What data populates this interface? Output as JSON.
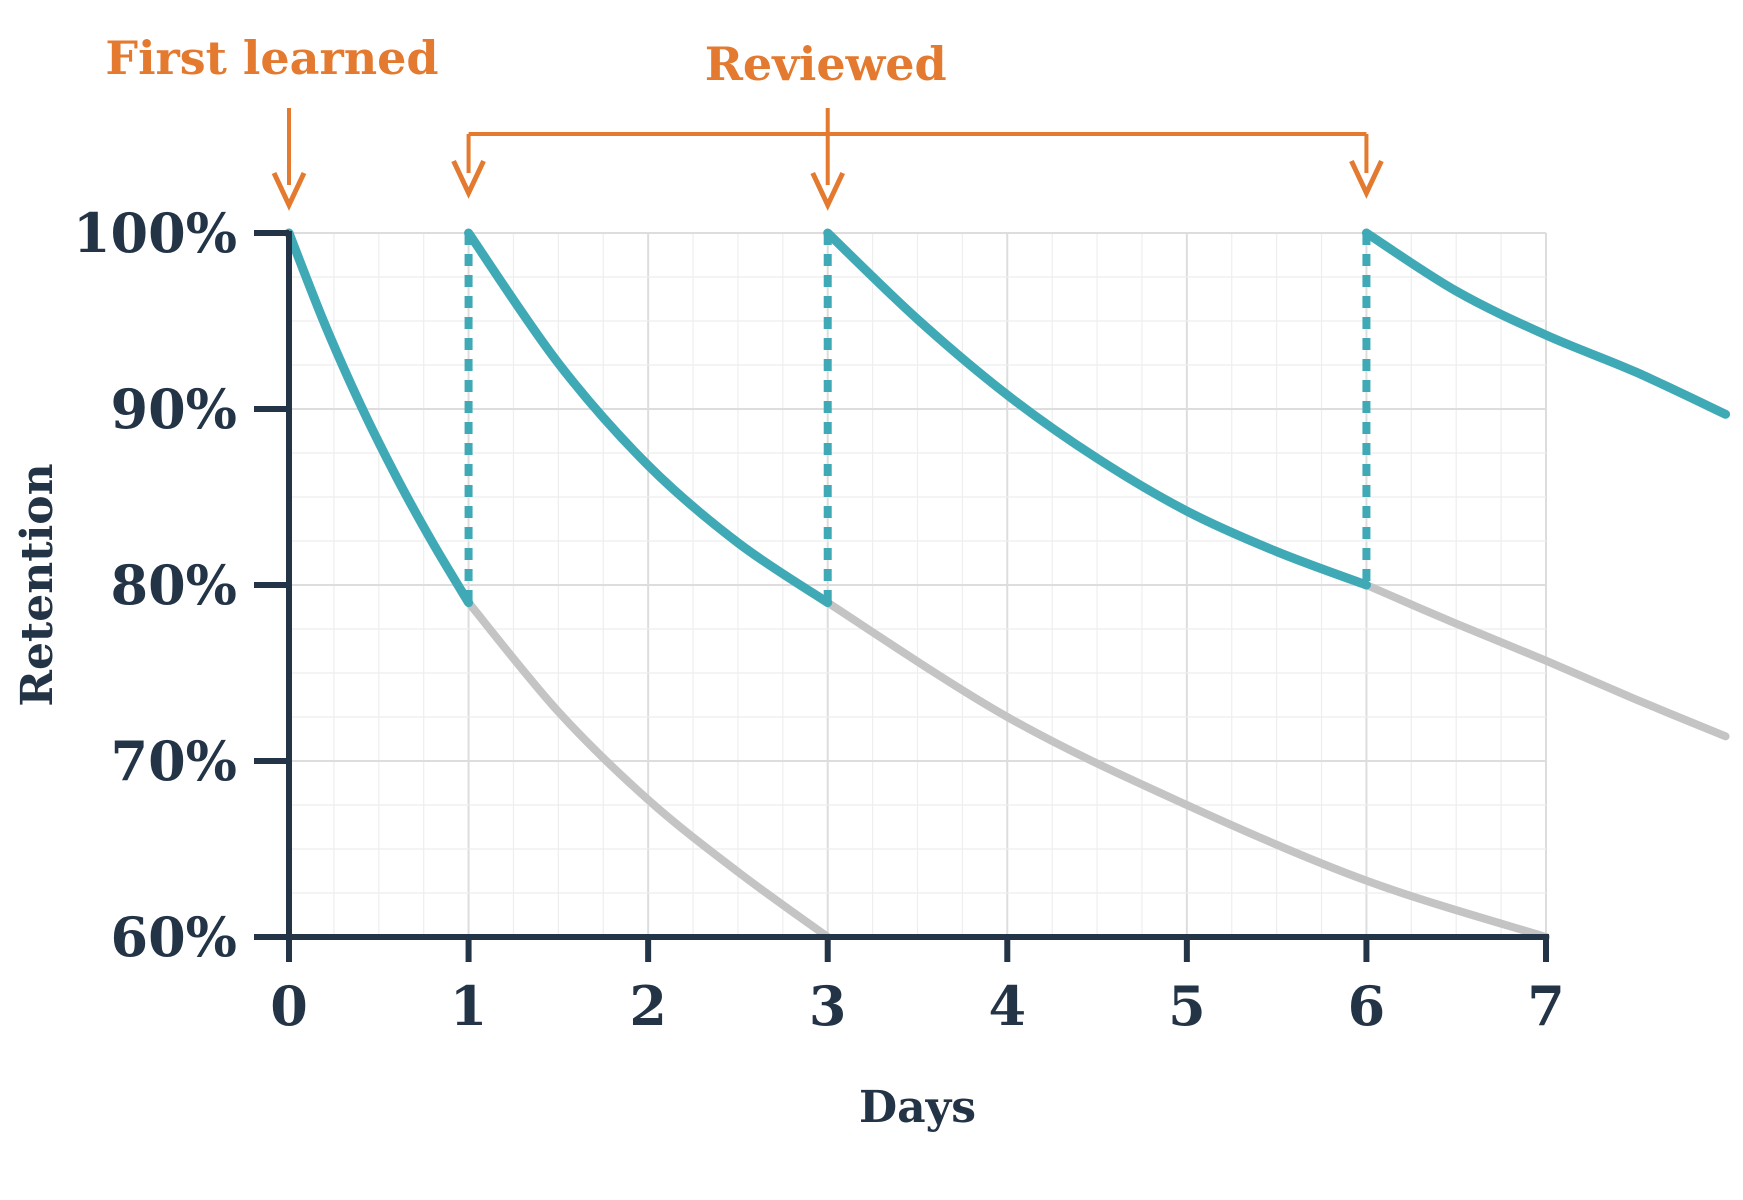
{
  "chart_data": {
    "type": "line",
    "xlabel": "Days",
    "ylabel": "Retention",
    "xlim": [
      0,
      7
    ],
    "ylim": [
      60,
      100
    ],
    "x_ticks": [
      "0",
      "1",
      "2",
      "3",
      "4",
      "5",
      "6",
      "7"
    ],
    "y_ticks": [
      "100%",
      "90%",
      "80%",
      "70%",
      "60%"
    ],
    "grid": true,
    "annotations": {
      "first_learned": {
        "label": "First learned",
        "x": 0
      },
      "reviewed": {
        "label": "Reviewed",
        "x": [
          1,
          3,
          6
        ]
      }
    },
    "retained_series": [
      {
        "x": [
          0,
          0.2,
          0.4,
          0.6,
          0.8,
          1.0
        ],
        "y": [
          100,
          94.8,
          90.2,
          86.1,
          82.4,
          79
        ]
      },
      {
        "x": [
          1,
          1.5,
          2,
          2.5,
          3
        ],
        "y": [
          100,
          92.6,
          86.8,
          82.4,
          79
        ]
      },
      {
        "x": [
          3,
          3.5,
          4,
          4.5,
          5,
          5.5,
          6
        ],
        "y": [
          100,
          95.1,
          90.8,
          87.2,
          84.2,
          81.9,
          80
        ]
      },
      {
        "x": [
          6,
          6.5,
          7,
          7.5,
          8
        ],
        "y": [
          100,
          96.7,
          94.2,
          92.1,
          89.7
        ]
      }
    ],
    "forgetting_series": [
      {
        "x": [
          1,
          1.5,
          2,
          2.5,
          3
        ],
        "y": [
          79,
          72.8,
          67.8,
          63.7,
          60
        ]
      },
      {
        "x": [
          3,
          4,
          5,
          6,
          7
        ],
        "y": [
          79,
          72.5,
          67.5,
          63.2,
          60
        ]
      },
      {
        "x": [
          6,
          6.5,
          7,
          7.5,
          8
        ],
        "y": [
          80,
          77.8,
          75.7,
          73.5,
          71.4
        ]
      }
    ],
    "colors": {
      "retained": "#40a9b6",
      "forgetting": "#c4c4c4",
      "annotation": "#e37a2f",
      "axis": "#243447",
      "grid_major": "#dddddd",
      "grid_minor": "#eeeeee"
    }
  }
}
